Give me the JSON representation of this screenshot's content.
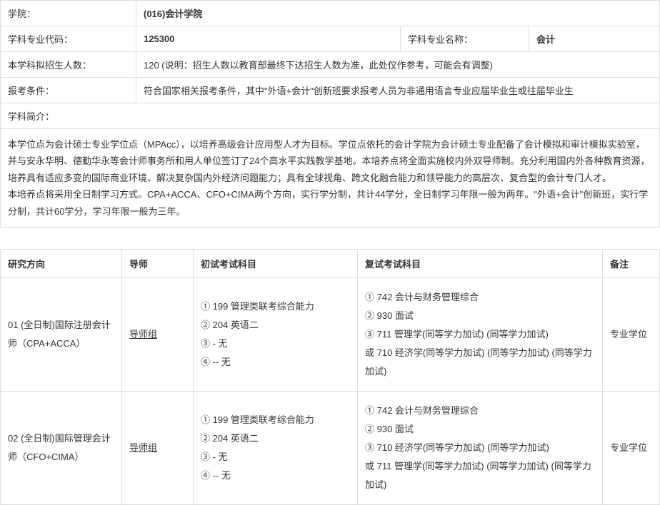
{
  "info": {
    "labels": {
      "college": "学院：",
      "discipline_code": "学科专业代码：",
      "discipline_name": "学科专业名称：",
      "enrollment": "本学科拟招生人数：",
      "requirements": "报考条件：",
      "intro": "学科简介："
    },
    "values": {
      "college": "(016)会计学院",
      "discipline_code": "125300",
      "discipline_name": "会计",
      "enrollment": "120 (说明：招生人数以教育部最终下达招生人数为准，此处仅作参考，可能会有调整)",
      "requirements": "符合国家相关报考条件，其中\"外语+会计\"创新班要求报考人员为非通用语言专业应届毕业生或往届毕业生"
    },
    "description": "本学位点为会计硕士专业学位点（MPAcc），以培养高级会计应用型人才为目标。学位点依托的会计学院为会计硕士专业配备了会计模拟和审计模拟实验室，并与安永华明、德勤华永等会计师事务所和用人单位签订了24个高水平实践教学基地。本培养点将全面实施校内外双导师制。充分利用国内外各种教育资源，培养具有适应多变的国际商业环境、解决复杂国内外经济问题能力；具有全球视角、跨文化融合能力和领导能力的高层次、复合型的会计专门人才。\n本培养点将采用全日制学习方式。CPA+ACCA、CFO+CIMA两个方向，实行学分制，共计44学分，全日制学习年限一般为两年。\"外语+会计\"创新班，实行学分制，共计60学分，学习年限一般为三年。"
  },
  "courses": {
    "headers": {
      "direction": "研究方向",
      "advisor": "导师",
      "prelim": "初试考试科目",
      "retest": "复试考试科目",
      "note": "备注"
    },
    "rows": [
      {
        "direction": "01 (全日制)国际注册会计师（CPA+ACCA）",
        "advisor": "导师组",
        "prelim": [
          "①  199  管理类联考综合能力",
          "②  204  英语二",
          "③  -  无",
          "④  --  无"
        ],
        "retest": [
          "①  742  会计与财务管理综合",
          "②  930  面试",
          "③  711  管理学(同等学力加试)  (同等学力加试)",
          "或  710  经济学(同等学力加试)  (同等学力加试)  (同等学力加试)"
        ],
        "note": "专业学位"
      },
      {
        "direction": "02 (全日制)国际管理会计师（CFO+CIMA）",
        "advisor": "导师组",
        "prelim": [
          "①  199  管理类联考综合能力",
          "②  204  英语二",
          "③  -  无",
          "④  --  无"
        ],
        "retest": [
          "①  742  会计与财务管理综合",
          "②  930  面试",
          "③  710  经济学(同等学力加试)  (同等学力加试)",
          "或  711  管理学(同等学力加试)  (同等学力加试)  (同等学力加试)"
        ],
        "note": "专业学位"
      }
    ]
  }
}
